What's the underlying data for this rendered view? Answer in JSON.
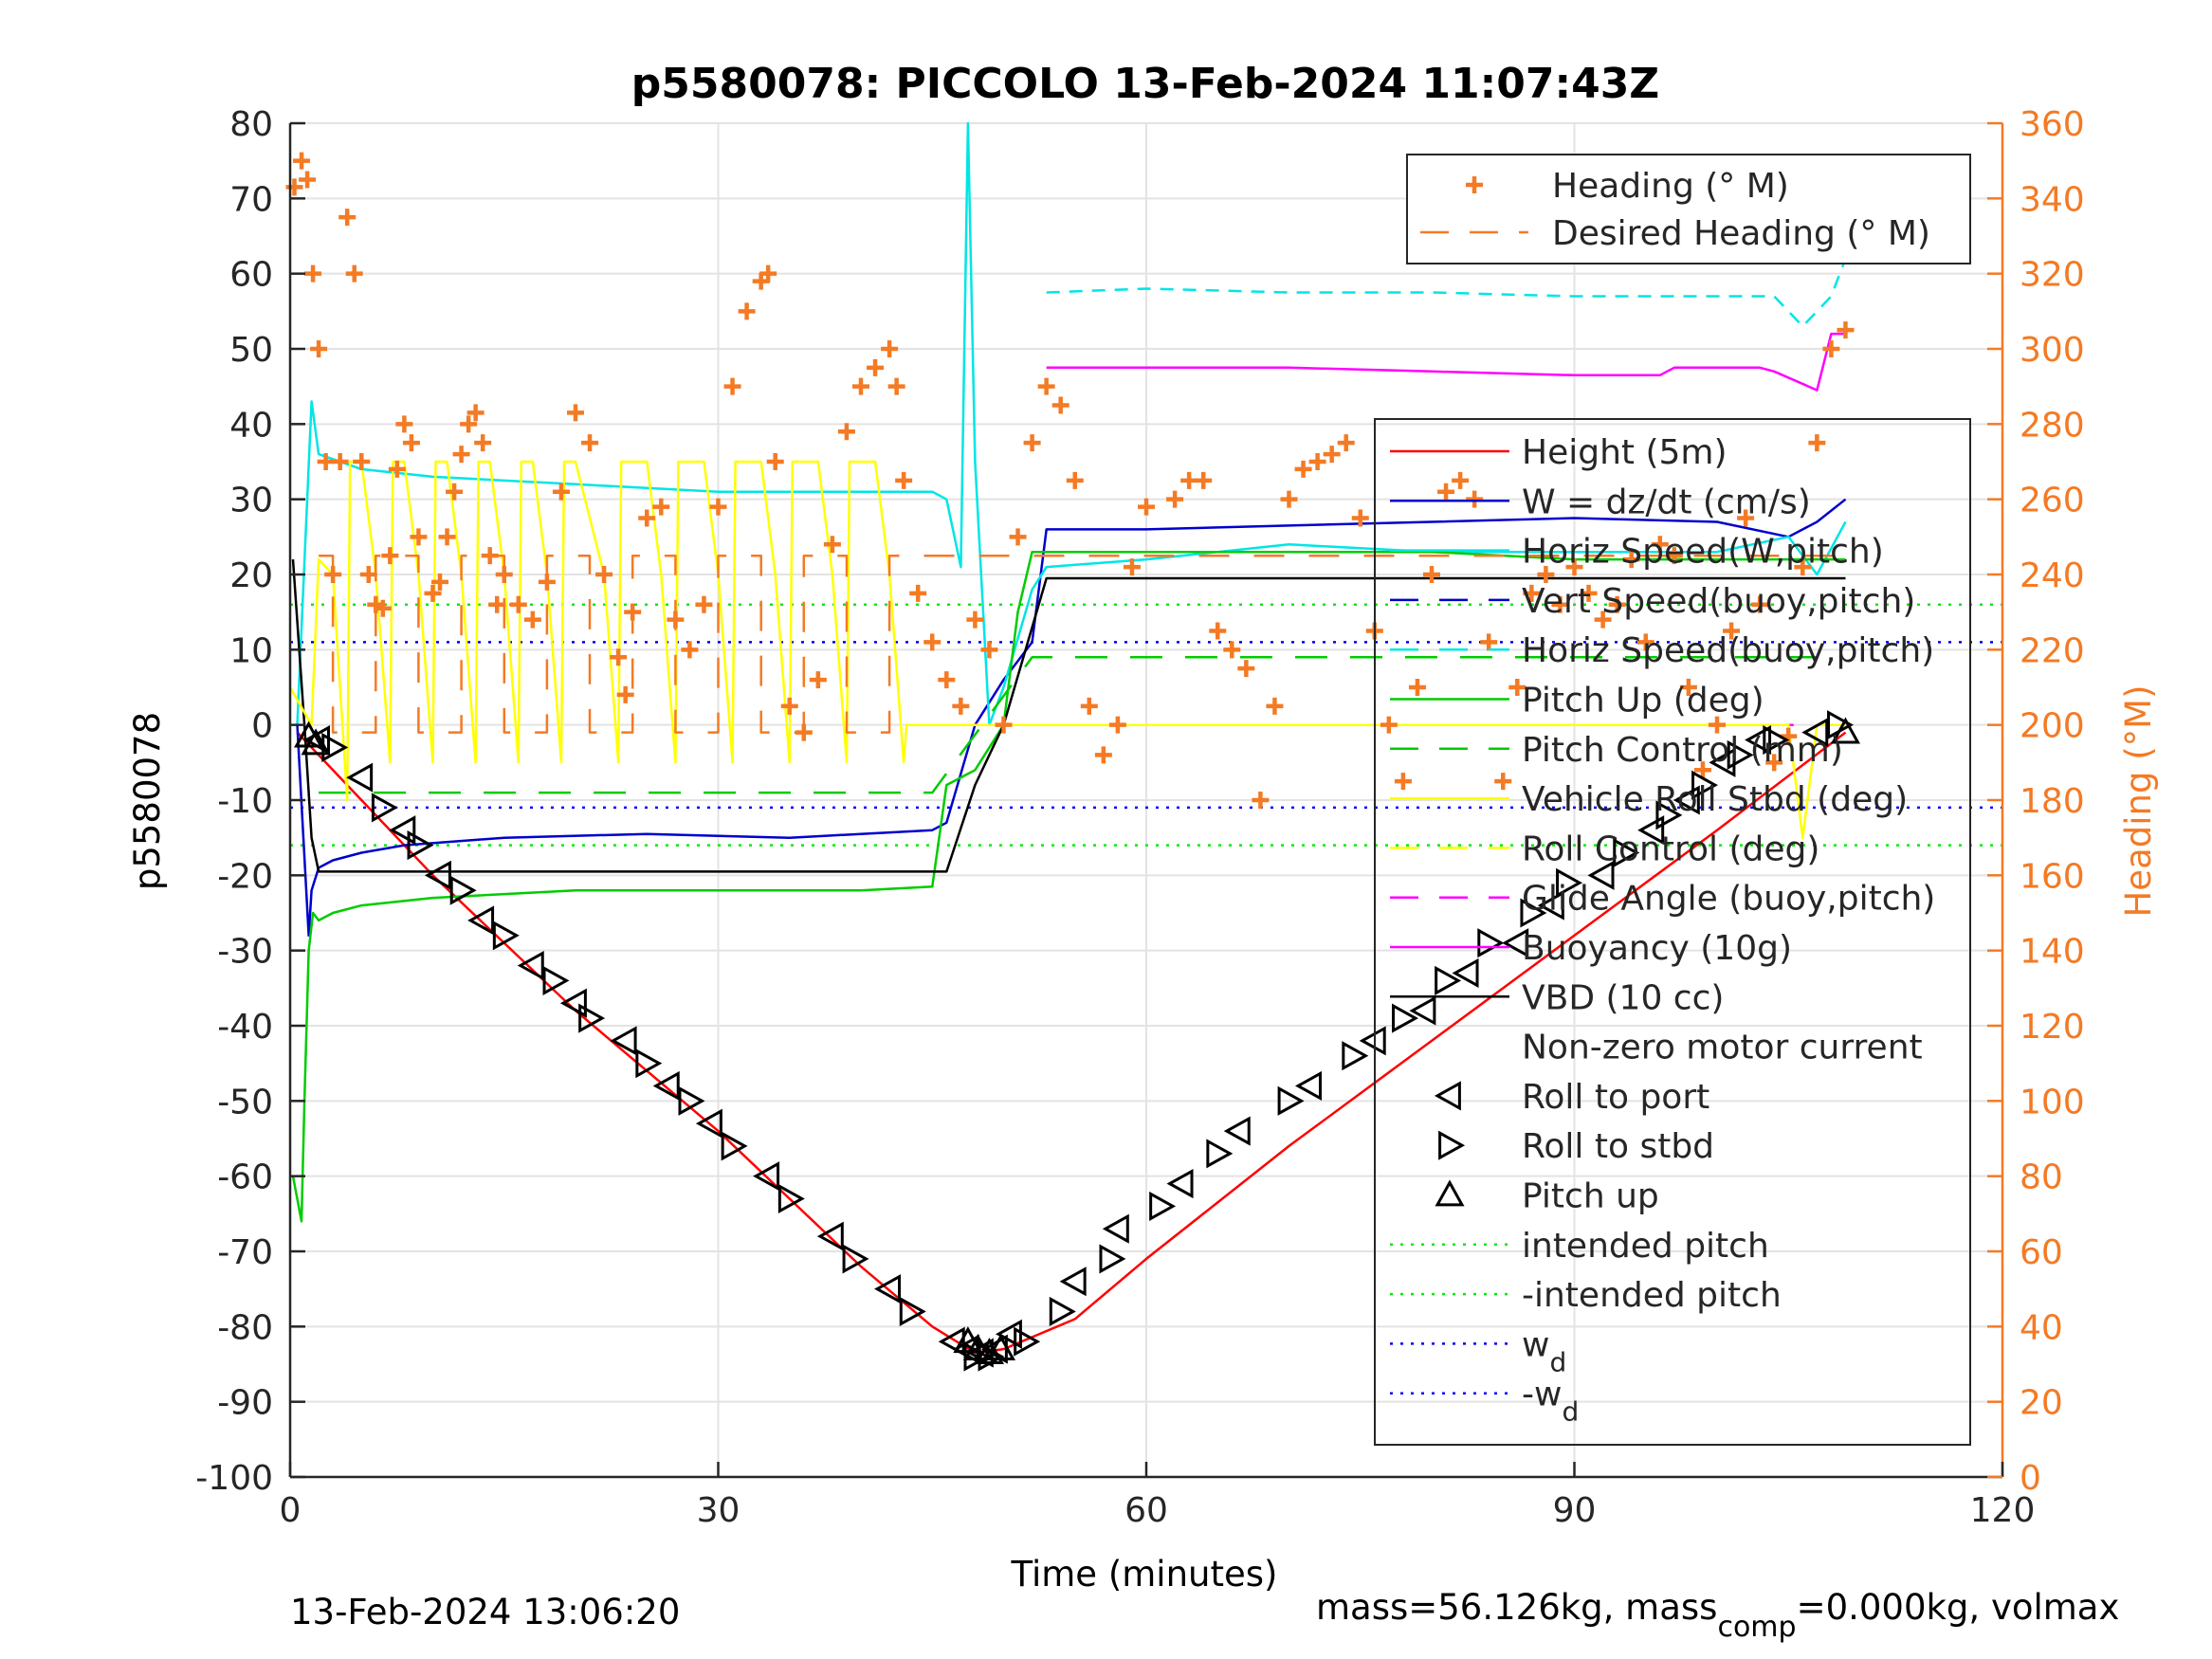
{
  "chart_data": {
    "type": "line",
    "title": "p5580078: PICCOLO 13-Feb-2024 11:07:43Z",
    "xlabel": "Time (minutes)",
    "ylabel": "p5580078",
    "y2label": "Heading (°M)",
    "xlim": [
      0,
      120
    ],
    "ylim": [
      -100,
      80
    ],
    "y2lim": [
      0,
      360
    ],
    "xticks": [
      "0",
      "30",
      "60",
      "90",
      "120"
    ],
    "yticks": [
      "80",
      "70",
      "60",
      "50",
      "40",
      "30",
      "20",
      "10",
      "0",
      "-10",
      "-20",
      "-30",
      "-40",
      "-50",
      "-60",
      "-70",
      "-80",
      "-90",
      "-100"
    ],
    "y2ticks": [
      "360",
      "340",
      "320",
      "300",
      "280",
      "260",
      "240",
      "220",
      "200",
      "180",
      "160",
      "140",
      "120",
      "100",
      "80",
      "60",
      "40",
      "20",
      "0"
    ],
    "grid": true,
    "footer_left": "13-Feb-2024 13:06:20",
    "footer_right": {
      "prefix": "mass=56.126kg, mass",
      "sub": "comp",
      "suffix": "=0.000kg, volmax"
    },
    "legend_top": {
      "placement": "top-right",
      "entries": [
        {
          "label": "Heading (° M)",
          "color": "#f47a24",
          "style": "plus"
        },
        {
          "label": "Desired Heading (° M)",
          "color": "#f47a24",
          "style": "dashed"
        }
      ]
    },
    "legend_main": {
      "placement": "right",
      "entries": [
        {
          "label": "Height (5m)",
          "color": "#ff0000",
          "style": "solid"
        },
        {
          "label": "W = dz/dt (cm/s)",
          "color": "#0000cc",
          "style": "solid"
        },
        {
          "label": "Horiz Speed(W,pitch)",
          "color": "#00e5e5",
          "style": "solid"
        },
        {
          "label": "Vert Speed(buoy,pitch)",
          "color": "#0000cc",
          "style": "dashed"
        },
        {
          "label": "Horiz Speed(buoy,pitch)",
          "color": "#00e5e5",
          "style": "dashed"
        },
        {
          "label": "Pitch Up (deg)",
          "color": "#00cc00",
          "style": "solid"
        },
        {
          "label": "Pitch Control (mm)",
          "color": "#00cc00",
          "style": "dashed"
        },
        {
          "label": "Vehicle Roll Stbd (deg)",
          "color": "#ffff00",
          "style": "solid"
        },
        {
          "label": "Roll Control (deg)",
          "color": "#ffff00",
          "style": "dashed"
        },
        {
          "label": "Glide Angle (buoy,pitch)",
          "color": "#ff00ff",
          "style": "dashed"
        },
        {
          "label": "Buoyancy (10g)",
          "color": "#ff00ff",
          "style": "solid"
        },
        {
          "label": "VBD (10 cc)",
          "color": "#000000",
          "style": "solid"
        },
        {
          "label": "Non-zero motor current",
          "color": "#000000",
          "style": "none"
        },
        {
          "label": "Roll to port",
          "color": "#000000",
          "style": "tri-left"
        },
        {
          "label": "Roll to stbd",
          "color": "#000000",
          "style": "tri-right"
        },
        {
          "label": "Pitch up",
          "color": "#000000",
          "style": "tri-up"
        },
        {
          "label": "intended pitch",
          "color": "#00ee00",
          "style": "dotted"
        },
        {
          "label": "-intended pitch",
          "color": "#00ee00",
          "style": "dotted"
        },
        {
          "label": "w",
          "sub": "d",
          "color": "#0000ff",
          "style": "dotted"
        },
        {
          "label": "-w",
          "sub": "d",
          "color": "#0000ff",
          "style": "dotted"
        }
      ]
    },
    "reference_lines": [
      {
        "name": "intended pitch",
        "y": 16,
        "color": "#00ee00"
      },
      {
        "name": "-intended pitch",
        "y": -16,
        "color": "#00ee00"
      },
      {
        "name": "w_d",
        "y": 11,
        "color": "#0000ff"
      },
      {
        "name": "-w_d",
        "y": -11,
        "color": "#0000ff"
      }
    ],
    "series": [
      {
        "name": "Height (5m)",
        "color": "#ff0000",
        "x": [
          0.5,
          10,
          20,
          30,
          40,
          45,
          48,
          50,
          55,
          60,
          70,
          80,
          90,
          100,
          109
        ],
        "y": [
          -1,
          -20,
          -38,
          -54,
          -72,
          -80,
          -83.5,
          -83,
          -79,
          -71,
          -56,
          -42,
          -28,
          -14,
          -1
        ]
      },
      {
        "name": "W = dz/dt (cm/s)",
        "color": "#0000cc",
        "x": [
          0.5,
          1.3,
          1.5,
          2,
          3,
          5,
          8,
          15,
          25,
          35,
          45,
          46,
          48,
          50,
          52,
          53,
          60,
          70,
          80,
          90,
          100,
          105,
          107,
          109
        ],
        "y": [
          0,
          -28,
          -22,
          -19,
          -18,
          -17,
          -16,
          -15,
          -14.5,
          -15,
          -14,
          -13,
          0,
          6,
          11,
          26,
          26,
          26.5,
          27,
          27.5,
          27,
          25,
          27,
          30
        ]
      },
      {
        "name": "Horiz Speed(W,pitch)",
        "color": "#00e5e5",
        "x": [
          0.5,
          1.5,
          2,
          5,
          10,
          20,
          30,
          40,
          45,
          46,
          47,
          47.5,
          48,
          49,
          50,
          52,
          53,
          60,
          70,
          80,
          90,
          100,
          105,
          107,
          109
        ],
        "y": [
          0,
          43,
          36,
          34,
          33,
          32,
          31,
          31,
          31,
          30,
          21,
          80,
          35,
          0,
          5,
          18,
          21,
          22,
          24,
          23,
          23,
          23,
          25,
          20,
          27
        ]
      },
      {
        "name": "Horiz Speed(buoy,pitch)",
        "color": "#00e5e5",
        "x": [
          53,
          60,
          70,
          80,
          90,
          100,
          104,
          106,
          108,
          109
        ],
        "y": [
          57.5,
          58,
          57.5,
          57.5,
          57,
          57,
          57,
          53,
          57,
          62
        ]
      },
      {
        "name": "Pitch Up (deg)",
        "color": "#00cc00",
        "x": [
          0.2,
          0.8,
          1.0,
          1.3,
          1.6,
          2,
          3,
          5,
          10,
          20,
          30,
          40,
          45,
          46,
          48,
          50,
          51,
          52,
          60,
          70,
          80,
          90,
          100,
          105,
          109
        ],
        "y": [
          -60,
          -66,
          -50,
          -30,
          -25,
          -26,
          -25,
          -24,
          -23,
          -22,
          -22,
          -22,
          -21.5,
          -8,
          -6,
          0,
          15,
          23,
          23,
          23,
          23,
          22,
          22,
          22,
          22
        ]
      },
      {
        "name": "Pitch Control (mm)",
        "color": "#00cc00",
        "x": [
          2,
          45,
          52,
          107
        ],
        "y": [
          -9,
          -9,
          9,
          9
        ]
      },
      {
        "name": "Buoyancy (10g)",
        "color": "#ff00ff",
        "x": [
          53,
          60,
          70,
          80,
          90,
          96,
          97,
          103,
          104,
          107,
          108,
          109
        ],
        "y": [
          47.5,
          47.5,
          47.5,
          47,
          46.5,
          46.5,
          47.5,
          47.5,
          47,
          44.5,
          52,
          52
        ]
      },
      {
        "name": "Glide Angle (buoy,pitch)",
        "color": "#ff00ff",
        "x": [
          53,
          108
        ],
        "y": [
          0,
          0
        ]
      },
      {
        "name": "VBD (10 cc)",
        "color": "#000000",
        "x": [
          0.2,
          1,
          1.5,
          2,
          46,
          48,
          50,
          53,
          109
        ],
        "y": [
          22,
          0,
          -15,
          -19.5,
          -19.5,
          -8,
          0,
          19.5,
          19.5
        ]
      },
      {
        "name": "Vehicle Roll Stbd (deg)",
        "color": "#ffff00",
        "x": [
          0,
          1.5,
          2,
          3,
          4,
          4.2,
          5,
          6,
          7,
          7.2,
          8,
          9,
          10,
          10.2,
          11,
          12,
          13,
          13.2,
          14,
          15,
          16,
          16.2,
          17,
          18,
          19,
          19.2,
          20,
          22,
          23,
          23.2,
          25,
          26,
          27,
          27.2,
          29,
          30,
          31,
          31.2,
          33,
          34,
          35,
          35.2,
          37,
          38,
          39,
          39.2,
          41,
          42,
          43,
          43.2,
          46,
          48,
          50,
          53,
          60,
          70,
          80,
          90,
          100,
          105,
          106,
          107,
          108,
          109
        ],
        "y": [
          5,
          0,
          22,
          20,
          -10,
          35,
          35,
          20,
          -5,
          35,
          35,
          20,
          -5,
          35,
          35,
          20,
          -5,
          35,
          35,
          20,
          -5,
          35,
          35,
          20,
          -5,
          35,
          35,
          20,
          -5,
          35,
          35,
          20,
          -5,
          35,
          35,
          20,
          -5,
          35,
          35,
          20,
          -5,
          35,
          35,
          20,
          -5,
          35,
          35,
          20,
          -5,
          0,
          0,
          0,
          0,
          0,
          0,
          0,
          0,
          0,
          0,
          0,
          -15,
          0,
          0,
          0
        ]
      },
      {
        "name": "Heading (° M)",
        "color": "#f47a24",
        "axis": "right",
        "x": [
          0.3,
          0.8,
          1.2,
          1.6,
          2,
          2.5,
          3,
          3.5,
          4,
          4.5,
          5,
          5.5,
          6,
          6.5,
          7,
          7.5,
          8,
          8.5,
          9,
          10,
          10.5,
          11,
          11.5,
          12,
          12.5,
          13,
          13.5,
          14,
          14.5,
          15,
          16,
          17,
          18,
          19,
          20,
          21,
          22,
          23,
          23.5,
          24,
          25,
          26,
          27,
          28,
          29,
          30,
          31,
          32,
          33,
          33.5,
          34,
          35,
          36,
          37,
          38,
          39,
          40,
          41,
          42,
          42.5,
          43,
          44,
          45,
          46,
          47,
          48,
          49,
          50,
          51,
          52,
          53,
          54,
          55,
          56,
          57,
          58,
          59,
          60,
          62,
          63,
          64,
          65,
          66,
          67,
          68,
          69,
          70,
          71,
          72,
          73,
          74,
          75,
          76,
          77,
          78,
          79,
          80,
          81,
          82,
          83,
          84,
          85,
          86,
          87,
          88,
          89,
          90,
          91,
          92,
          93,
          94,
          95,
          96,
          97,
          98,
          99,
          100,
          101,
          102,
          103,
          104,
          105,
          106,
          107,
          108,
          109
        ],
        "y": [
          343,
          350,
          345,
          320,
          300,
          270,
          240,
          270,
          335,
          320,
          270,
          240,
          232,
          231,
          245,
          268,
          280,
          275,
          250,
          235,
          238,
          250,
          262,
          272,
          280,
          283,
          275,
          245,
          232,
          240,
          232,
          228,
          238,
          262,
          283,
          275,
          240,
          218,
          208,
          230,
          255,
          258,
          228,
          220,
          232,
          258,
          290,
          310,
          318,
          320,
          270,
          205,
          198,
          212,
          248,
          278,
          290,
          295,
          300,
          290,
          265,
          235,
          222,
          212,
          205,
          228,
          220,
          200,
          250,
          275,
          290,
          285,
          265,
          205,
          192,
          200,
          242,
          258,
          260,
          265,
          265,
          225,
          220,
          215,
          180,
          205,
          260,
          268,
          270,
          272,
          275,
          255,
          225,
          200,
          185,
          210,
          240,
          262,
          265,
          260,
          222,
          185,
          210,
          235,
          240,
          232,
          242,
          235,
          228,
          232,
          244,
          222,
          248,
          245,
          210,
          188,
          200,
          225,
          255,
          232,
          190,
          197,
          242,
          275,
          300,
          305
        ]
      },
      {
        "name": "Desired Heading (° M)",
        "color": "#f47a24",
        "axis": "right",
        "x": [
          2,
          3,
          3,
          6,
          6,
          9,
          9,
          12,
          12,
          15,
          15,
          18,
          18,
          21,
          21,
          24,
          24,
          27,
          27,
          30,
          30,
          33,
          33,
          36,
          36,
          39,
          39,
          42,
          42,
          46,
          53,
          109
        ],
        "y": [
          245,
          245,
          198,
          198,
          245,
          245,
          198,
          198,
          245,
          245,
          198,
          198,
          245,
          245,
          198,
          198,
          245,
          245,
          198,
          198,
          245,
          245,
          198,
          198,
          245,
          245,
          198,
          198,
          245,
          245,
          245,
          245
        ]
      }
    ],
    "markers": {
      "tri_left": {
        "x": [
          2,
          5,
          8,
          10.5,
          13.5,
          17,
          20,
          23.5,
          26.5,
          29.5,
          33.5,
          38,
          42,
          46.5,
          47.5,
          48.5,
          49.5,
          50.5,
          55,
          58,
          62.5,
          66.5,
          71.5,
          76,
          79.5,
          82.5,
          86,
          88.5,
          92,
          95.5,
          98,
          100.5,
          103,
          107
        ],
        "y": [
          -2,
          -7,
          -14,
          -20,
          -26,
          -32,
          -37,
          -42,
          -48,
          -53,
          -60,
          -68,
          -75,
          -82,
          -83,
          -83.5,
          -83,
          -81,
          -74,
          -67,
          -61,
          -54,
          -48,
          -42,
          -38,
          -33,
          -29,
          -24,
          -20,
          -14,
          -10,
          -5,
          -2,
          -1
        ]
      },
      "tri_right": {
        "x": [
          3,
          6.5,
          9,
          12,
          15,
          18.5,
          21,
          25,
          28,
          31,
          35,
          39.5,
          43.5,
          48,
          49,
          51.5,
          54,
          57.5,
          61,
          65,
          70,
          74.5,
          78,
          81,
          84,
          87,
          89.5,
          93.5,
          96.5,
          99,
          101.5,
          104,
          108.5
        ],
        "y": [
          -3,
          -11,
          -16,
          -22,
          -28,
          -34,
          -39,
          -45,
          -50,
          -56,
          -63,
          -71,
          -78,
          -84,
          -84,
          -82,
          -78,
          -71,
          -64,
          -57,
          -50,
          -44,
          -39,
          -34,
          -29,
          -25,
          -21,
          -17,
          -12,
          -8,
          -4,
          -2,
          0
        ]
      },
      "tri_up": {
        "x": [
          1.3,
          1.8,
          47.5,
          48.2,
          49,
          49.8,
          109
        ],
        "y": [
          -1.5,
          -2.5,
          -82,
          -83,
          -83.5,
          -83,
          -1
        ]
      }
    }
  }
}
